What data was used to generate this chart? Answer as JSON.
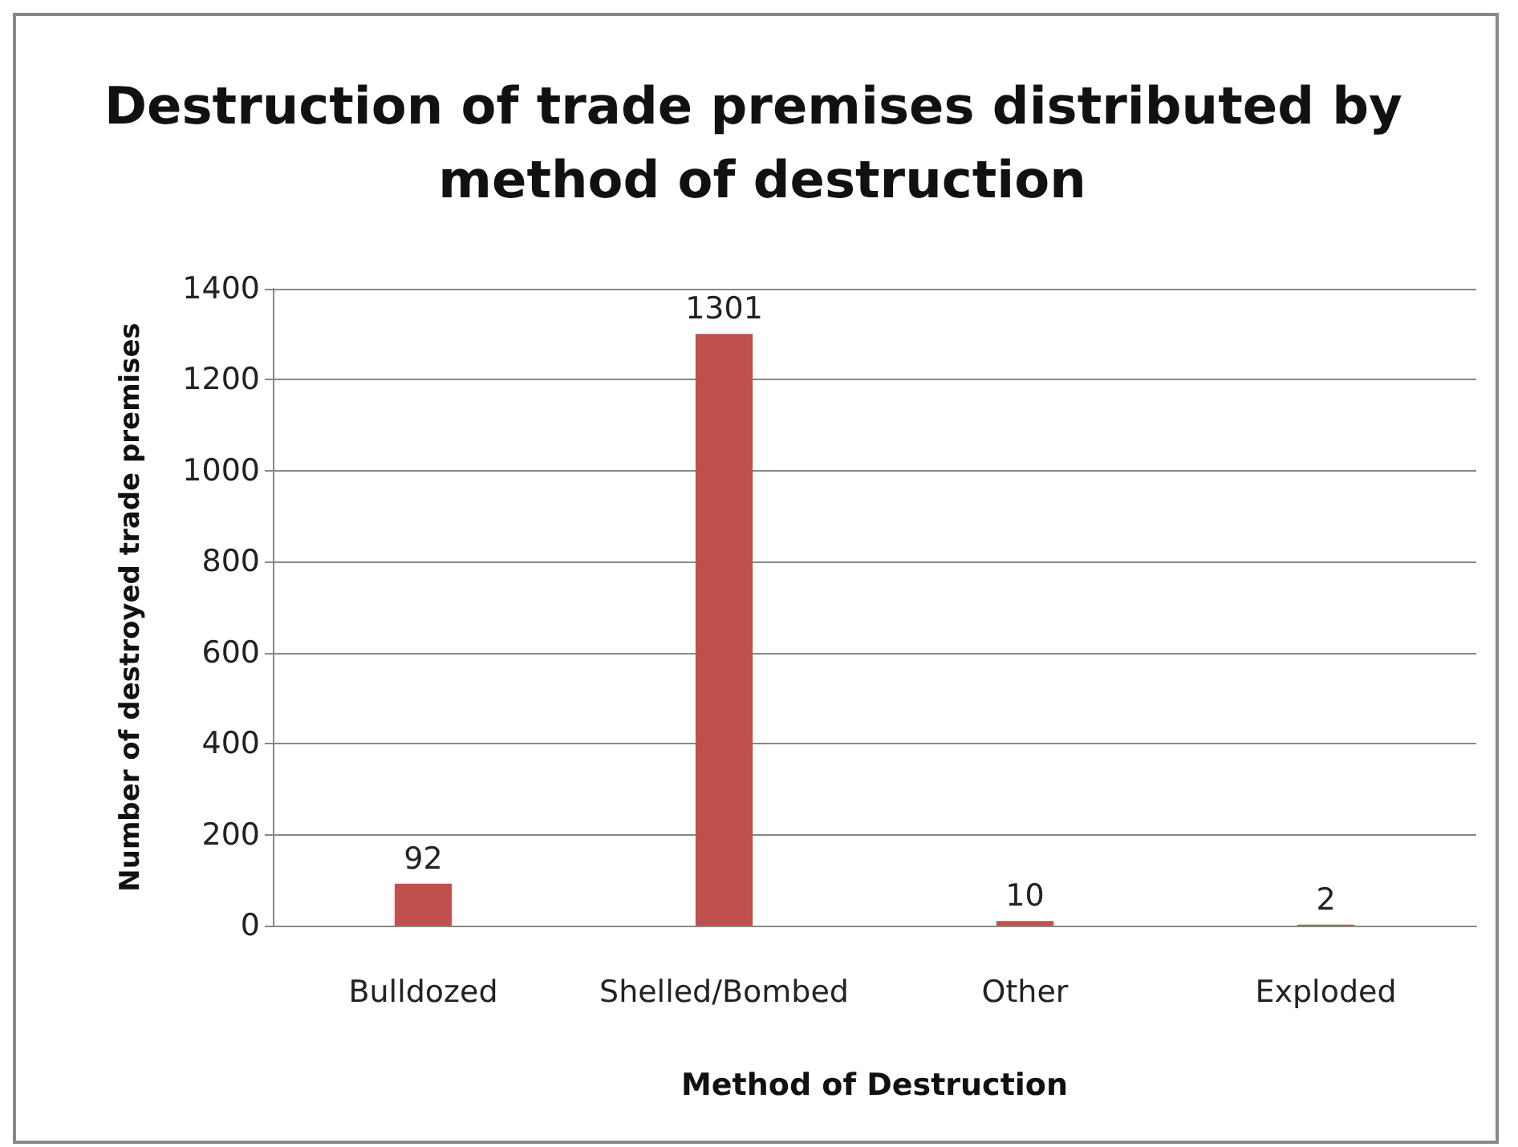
{
  "chart_data": {
    "type": "bar",
    "title": "Destruction of trade premises distributed by method of destruction",
    "xlabel": "Method of Destruction",
    "ylabel": "Number of destroyed trade premises",
    "categories": [
      "Bulldozed",
      "Shelled/Bombed",
      "Other",
      "Exploded"
    ],
    "values": [
      92,
      1301,
      10,
      2
    ],
    "color": "#c0504d",
    "ylim": [
      0,
      1400
    ],
    "yticks": [
      0,
      200,
      400,
      600,
      800,
      1000,
      1200,
      1400
    ],
    "grid": "y",
    "data_labels": true
  }
}
